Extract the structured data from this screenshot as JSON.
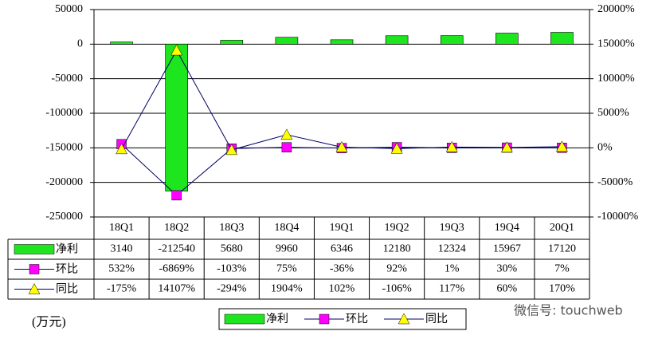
{
  "chart_data": {
    "type": "bar-line",
    "categories": [
      "18Q1",
      "18Q2",
      "18Q3",
      "18Q4",
      "19Q1",
      "19Q2",
      "19Q3",
      "19Q4",
      "20Q1"
    ],
    "series": [
      {
        "name": "净利",
        "color": "#1ee61e",
        "type": "bar",
        "values": [
          3140,
          -212540,
          5680,
          9960,
          6346,
          12180,
          12324,
          15967,
          17120
        ]
      },
      {
        "name": "环比",
        "color": "#ff00ff",
        "type": "line",
        "marker": "square",
        "axis": "y2",
        "values": [
          532,
          -6869,
          -103,
          75,
          -36,
          92,
          1,
          30,
          7
        ],
        "value_labels": [
          "532%",
          "-6869%",
          "-103%",
          "75%",
          "-36%",
          "92%",
          "1%",
          "30%",
          "7%"
        ]
      },
      {
        "name": "同比",
        "color": "#ffff00",
        "type": "line",
        "marker": "triangle",
        "axis": "y2",
        "values": [
          -175,
          14107,
          -294,
          1904,
          102,
          -106,
          117,
          60,
          170
        ],
        "value_labels": [
          "-175%",
          "14107%",
          "-294%",
          "1904%",
          "102%",
          "-106%",
          "117%",
          "60%",
          "170%"
        ]
      }
    ],
    "ylim": [
      -250000,
      50000
    ],
    "yticks": [
      -250000,
      -200000,
      -150000,
      -100000,
      -50000,
      0,
      50000
    ],
    "y2lim": [
      -10000,
      20000
    ],
    "y2ticks": [
      {
        "value": -10000,
        "label": "-10000%"
      },
      {
        "value": -5000,
        "label": "-5000%"
      },
      {
        "value": 0,
        "label": "0%"
      },
      {
        "value": 5000,
        "label": "5000%"
      },
      {
        "value": 10000,
        "label": "10000%"
      },
      {
        "value": 15000,
        "label": "15000%"
      },
      {
        "value": 20000,
        "label": "20000%"
      }
    ],
    "grid": true,
    "unit_note": "(万元)",
    "watermark": "微信号: touchweb"
  }
}
